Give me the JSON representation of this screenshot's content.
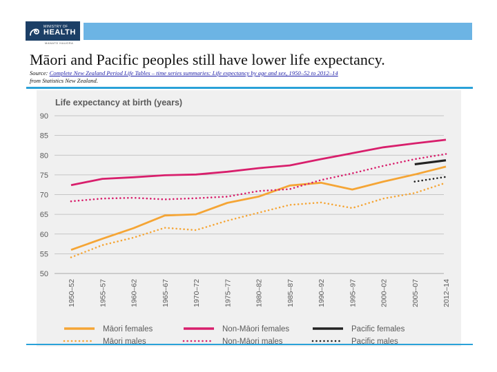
{
  "header": {
    "logo_line1": "MINISTRY OF",
    "logo_line2": "HEALTH",
    "logo_sub": "MANATŪ HAUORA"
  },
  "slide": {
    "title": "Māori and Pacific peoples still have lower life expectancy.",
    "source_prefix": "Source: ",
    "source_link": "Complete New Zealand Period Life Tables – time series summaries: Life expectancy by age and sex, 1950–52 to 2012–14",
    "source_suffix": " from Statistics New Zealand."
  },
  "colors": {
    "maori": "#f5a535",
    "non_maori": "#d81f6c",
    "pacific": "#222222",
    "grid": "#b7b7b7",
    "text": "#5a5a5a"
  },
  "chart_data": {
    "type": "line",
    "title": "Life expectancy at birth (years)",
    "xlabel": "",
    "ylabel": "",
    "ylim": [
      50,
      90
    ],
    "yticks": [
      50,
      55,
      60,
      65,
      70,
      75,
      80,
      85,
      90
    ],
    "categories": [
      "1950–52",
      "1955–57",
      "1960–62",
      "1965–67",
      "1970–72",
      "1975–77",
      "1980–82",
      "1985–87",
      "1990–92",
      "1995–97",
      "2000–02",
      "2005–07",
      "2012–14"
    ],
    "legend_position": "bottom",
    "series": [
      {
        "key": "maori_f",
        "name": "Māori females",
        "color": "#f5a535",
        "style": "solid",
        "values": [
          56.0,
          58.8,
          61.5,
          64.7,
          65.0,
          67.9,
          69.5,
          72.3,
          73.0,
          71.3,
          73.3,
          75.1,
          77.1
        ]
      },
      {
        "key": "maori_m",
        "name": "Māori males",
        "color": "#f5a535",
        "style": "dotted",
        "values": [
          54.1,
          57.2,
          59.1,
          61.6,
          61.0,
          63.4,
          65.4,
          67.4,
          68.0,
          66.6,
          69.0,
          70.4,
          73.0
        ]
      },
      {
        "key": "nonmaori_f",
        "name": "Non-Māori females",
        "color": "#d81f6c",
        "style": "solid",
        "values": [
          72.4,
          74.0,
          74.4,
          74.9,
          75.1,
          75.8,
          76.7,
          77.4,
          79.0,
          80.5,
          82.0,
          83.0,
          83.9
        ]
      },
      {
        "key": "nonmaori_m",
        "name": "Non-Māori males",
        "color": "#d81f6c",
        "style": "dotted",
        "values": [
          68.3,
          69.0,
          69.2,
          68.8,
          69.1,
          69.5,
          70.9,
          71.4,
          73.7,
          75.4,
          77.3,
          79.0,
          80.3
        ]
      },
      {
        "key": "pacific_f",
        "name": "Pacific females",
        "color": "#222222",
        "style": "solid",
        "values": [
          null,
          null,
          null,
          null,
          null,
          null,
          null,
          null,
          null,
          null,
          null,
          77.7,
          78.7
        ]
      },
      {
        "key": "pacific_m",
        "name": "Pacific males",
        "color": "#222222",
        "style": "dotted",
        "values": [
          null,
          null,
          null,
          null,
          null,
          null,
          null,
          null,
          null,
          null,
          null,
          73.3,
          74.5
        ]
      }
    ]
  }
}
